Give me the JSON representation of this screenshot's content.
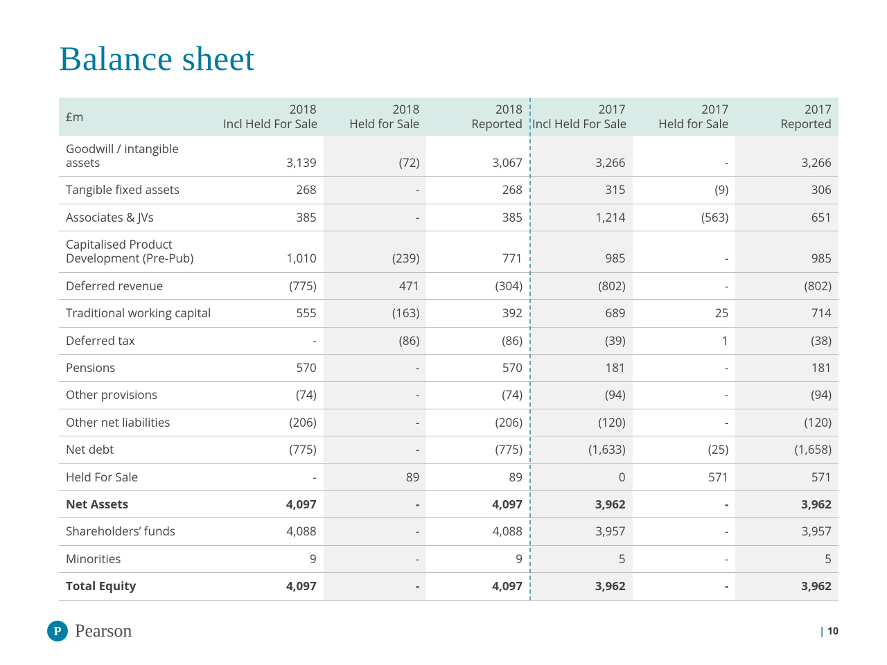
{
  "title": "Balance sheet",
  "title_color": "#007a9c",
  "currency_label": "£m",
  "header_bg": "#d9ebe6",
  "body_text_color": "#3f3f3f",
  "row_border_color": "#bcbcbc",
  "alt_col_bg": "#f1f1f1",
  "divider_color": "#5aa3c4",
  "columns": [
    {
      "year": "2018",
      "sub": "Incl Held For Sale"
    },
    {
      "year": "2018",
      "sub": "Held for Sale"
    },
    {
      "year": "2018",
      "sub": "Reported"
    },
    {
      "year": "2017",
      "sub": "Incl Held For Sale"
    },
    {
      "year": "2017",
      "sub": "Held for Sale"
    },
    {
      "year": "2017",
      "sub": "Reported"
    }
  ],
  "rows": [
    {
      "label": "Goodwill / intangible assets",
      "vals": [
        "3,139",
        "(72)",
        "3,067",
        "3,266",
        "-",
        "3,266"
      ],
      "bold": false
    },
    {
      "label": "Tangible fixed assets",
      "vals": [
        "268",
        "-",
        "268",
        "315",
        "(9)",
        "306"
      ],
      "bold": false
    },
    {
      "label": "Associates & JVs",
      "vals": [
        "385",
        "-",
        "385",
        "1,214",
        "(563)",
        "651"
      ],
      "bold": false
    },
    {
      "label": "Capitalised Product Development (Pre-Pub)",
      "vals": [
        "1,010",
        "(239)",
        "771",
        "985",
        "-",
        "985"
      ],
      "bold": false
    },
    {
      "label": "Deferred revenue",
      "vals": [
        "(775)",
        "471",
        "(304)",
        "(802)",
        "-",
        "(802)"
      ],
      "bold": false
    },
    {
      "label": "Traditional working capital",
      "vals": [
        "555",
        "(163)",
        "392",
        "689",
        "25",
        "714"
      ],
      "bold": false
    },
    {
      "label": "Deferred tax",
      "vals": [
        "-",
        "(86)",
        "(86)",
        "(39)",
        "1",
        "(38)"
      ],
      "bold": false
    },
    {
      "label": "Pensions",
      "vals": [
        "570",
        "-",
        "570",
        "181",
        "-",
        "181"
      ],
      "bold": false
    },
    {
      "label": "Other provisions",
      "vals": [
        "(74)",
        "-",
        "(74)",
        "(94)",
        "-",
        "(94)"
      ],
      "bold": false
    },
    {
      "label": "Other net liabilities",
      "vals": [
        "(206)",
        "-",
        "(206)",
        "(120)",
        "-",
        "(120)"
      ],
      "bold": false
    },
    {
      "label": "Net debt",
      "vals": [
        "(775)",
        "-",
        "(775)",
        "(1,633)",
        "(25)",
        "(1,658)"
      ],
      "bold": false
    },
    {
      "label": "Held For Sale",
      "vals": [
        "-",
        "89",
        "89",
        "0",
        "571",
        "571"
      ],
      "bold": false
    },
    {
      "label": "Net Assets",
      "vals": [
        "4,097",
        "-",
        "4,097",
        "3,962",
        "-",
        "3,962"
      ],
      "bold": true
    },
    {
      "label": "Shareholders’ funds",
      "vals": [
        "4,088",
        "-",
        "4,088",
        "3,957",
        "-",
        "3,957"
      ],
      "bold": false
    },
    {
      "label": "Minorities",
      "vals": [
        "9",
        "-",
        "9",
        "5",
        "-",
        "5"
      ],
      "bold": false
    },
    {
      "label": "Total Equity",
      "vals": [
        "4,097",
        "-",
        "4,097",
        "3,962",
        "-",
        "3,962"
      ],
      "bold": true
    }
  ],
  "brand": {
    "name": "Pearson",
    "mark_letter": "P",
    "mark_bg": "#007fa3"
  },
  "page_number": "10"
}
